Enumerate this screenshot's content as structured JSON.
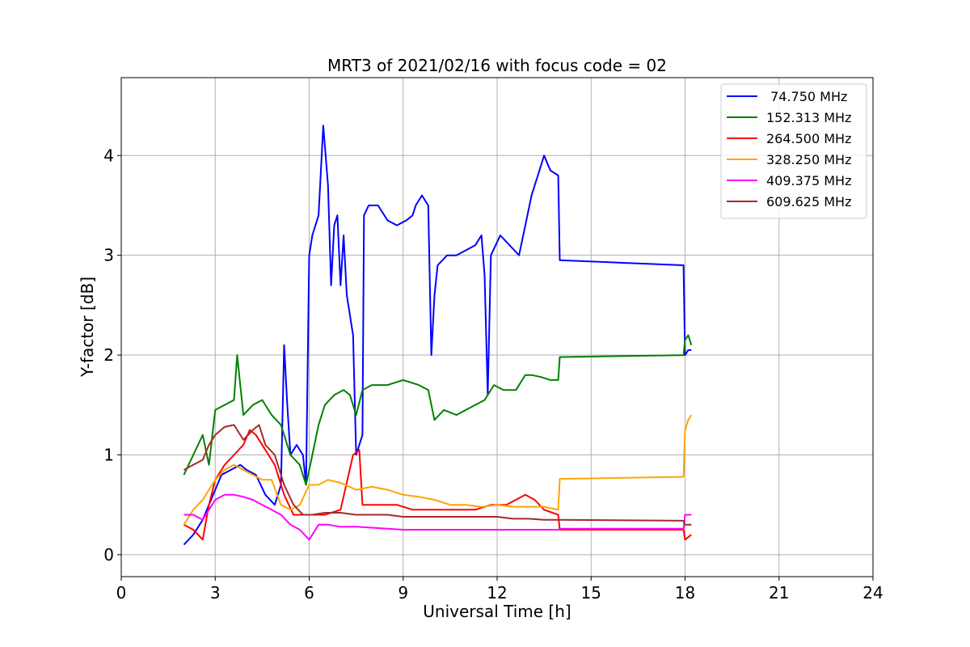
{
  "chart_data": {
    "type": "line",
    "title": "MRT3 of 2021/02/16 with focus code = 02",
    "xlabel": "Universal Time [h]",
    "ylabel": "Y-factor [dB]",
    "xlim": [
      0,
      24
    ],
    "ylim": [
      -0.22,
      4.78
    ],
    "xticks": [
      0,
      3,
      6,
      9,
      12,
      15,
      18,
      21,
      24
    ],
    "yticks": [
      0,
      1,
      2,
      3,
      4
    ],
    "grid": true,
    "legend_position": "top-right",
    "series": [
      {
        "name": " 74.750 MHz",
        "color": "#0000ff",
        "x": [
          2.0,
          2.3,
          2.6,
          2.8,
          3.0,
          3.2,
          3.5,
          3.8,
          4.0,
          4.3,
          4.6,
          4.9,
          5.1,
          5.2,
          5.3,
          5.4,
          5.6,
          5.8,
          5.9,
          6.0,
          6.1,
          6.3,
          6.45,
          6.6,
          6.7,
          6.8,
          6.9,
          7.0,
          7.1,
          7.2,
          7.3,
          7.4,
          7.5,
          7.6,
          7.7,
          7.75,
          7.9,
          8.2,
          8.5,
          8.8,
          9.1,
          9.3,
          9.4,
          9.6,
          9.8,
          9.9,
          10.0,
          10.1,
          10.4,
          10.7,
          11.0,
          11.3,
          11.5,
          11.6,
          11.7,
          11.8,
          12.1,
          12.4,
          12.7,
          12.9,
          13.1,
          13.3,
          13.5,
          13.7,
          13.95,
          14.0,
          17.95,
          18.0,
          18.1,
          18.2
        ],
        "y": [
          0.1,
          0.2,
          0.35,
          0.5,
          0.65,
          0.8,
          0.85,
          0.9,
          0.85,
          0.8,
          0.6,
          0.5,
          0.7,
          2.1,
          1.5,
          1.0,
          1.1,
          1.0,
          0.7,
          3.0,
          3.2,
          3.4,
          4.3,
          3.7,
          2.7,
          3.3,
          3.4,
          2.7,
          3.2,
          2.6,
          2.4,
          2.2,
          1.0,
          1.1,
          1.2,
          3.4,
          3.5,
          3.5,
          3.35,
          3.3,
          3.35,
          3.4,
          3.5,
          3.6,
          3.5,
          2.0,
          2.6,
          2.9,
          3.0,
          3.0,
          3.05,
          3.1,
          3.2,
          2.8,
          1.6,
          3.0,
          3.2,
          3.1,
          3.0,
          3.3,
          3.6,
          3.8,
          4.0,
          3.85,
          3.8,
          2.95,
          2.9,
          2.0,
          2.05,
          2.05
        ]
      },
      {
        "name": "152.313 MHz",
        "color": "#008000",
        "x": [
          2.0,
          2.3,
          2.6,
          2.8,
          3.0,
          3.3,
          3.6,
          3.7,
          3.9,
          4.2,
          4.5,
          4.8,
          5.1,
          5.4,
          5.7,
          5.9,
          6.1,
          6.3,
          6.5,
          6.8,
          7.1,
          7.3,
          7.5,
          7.7,
          8.0,
          8.5,
          9.0,
          9.5,
          9.8,
          10.0,
          10.3,
          10.7,
          11.0,
          11.3,
          11.6,
          11.9,
          12.2,
          12.6,
          12.9,
          13.1,
          13.4,
          13.7,
          13.95,
          14.0,
          17.95,
          18.0,
          18.1,
          18.2
        ],
        "y": [
          0.8,
          1.0,
          1.2,
          0.9,
          1.45,
          1.5,
          1.55,
          2.0,
          1.4,
          1.5,
          1.55,
          1.4,
          1.3,
          1.0,
          0.9,
          0.7,
          1.0,
          1.3,
          1.5,
          1.6,
          1.65,
          1.6,
          1.4,
          1.65,
          1.7,
          1.7,
          1.75,
          1.7,
          1.65,
          1.35,
          1.45,
          1.4,
          1.45,
          1.5,
          1.55,
          1.7,
          1.65,
          1.65,
          1.8,
          1.8,
          1.78,
          1.75,
          1.75,
          1.98,
          2.0,
          2.15,
          2.2,
          2.1
        ]
      },
      {
        "name": "264.500 MHz",
        "color": "#ff0000",
        "x": [
          2.0,
          2.3,
          2.6,
          2.8,
          3.0,
          3.3,
          3.6,
          3.9,
          4.1,
          4.3,
          4.6,
          4.9,
          5.2,
          5.5,
          5.8,
          6.1,
          6.5,
          7.0,
          7.4,
          7.6,
          7.7,
          7.9,
          8.3,
          8.8,
          9.3,
          9.8,
          10.3,
          10.8,
          11.3,
          11.8,
          12.3,
          12.6,
          12.9,
          13.2,
          13.5,
          13.95,
          14.0,
          17.95,
          18.0,
          18.2
        ],
        "y": [
          0.3,
          0.25,
          0.15,
          0.5,
          0.75,
          0.9,
          1.0,
          1.1,
          1.25,
          1.2,
          1.05,
          0.9,
          0.6,
          0.4,
          0.4,
          0.4,
          0.4,
          0.45,
          1.0,
          1.05,
          0.5,
          0.5,
          0.5,
          0.5,
          0.45,
          0.45,
          0.45,
          0.45,
          0.45,
          0.5,
          0.5,
          0.55,
          0.6,
          0.55,
          0.45,
          0.4,
          0.25,
          0.25,
          0.15,
          0.2
        ]
      },
      {
        "name": "328.250 MHz",
        "color": "#ffa500",
        "x": [
          2.0,
          2.3,
          2.6,
          2.8,
          3.0,
          3.3,
          3.6,
          3.9,
          4.2,
          4.5,
          4.8,
          5.1,
          5.4,
          5.7,
          6.0,
          6.3,
          6.6,
          7.0,
          7.5,
          8.0,
          8.5,
          9.0,
          9.5,
          10.0,
          10.5,
          11.0,
          11.5,
          12.0,
          12.5,
          13.0,
          13.5,
          13.95,
          14.0,
          17.95,
          18.0,
          18.1,
          18.2
        ],
        "y": [
          0.3,
          0.45,
          0.55,
          0.65,
          0.75,
          0.85,
          0.9,
          0.85,
          0.8,
          0.75,
          0.75,
          0.5,
          0.45,
          0.5,
          0.7,
          0.7,
          0.75,
          0.72,
          0.65,
          0.68,
          0.65,
          0.6,
          0.58,
          0.55,
          0.5,
          0.5,
          0.48,
          0.5,
          0.48,
          0.48,
          0.48,
          0.45,
          0.76,
          0.78,
          1.25,
          1.35,
          1.4
        ]
      },
      {
        "name": "409.375 MHz",
        "color": "#ff00ff",
        "x": [
          2.0,
          2.3,
          2.6,
          2.8,
          3.0,
          3.3,
          3.6,
          3.9,
          4.2,
          4.5,
          4.8,
          5.1,
          5.4,
          5.7,
          6.0,
          6.3,
          6.6,
          7.0,
          7.5,
          8.0,
          8.5,
          9.0,
          9.5,
          10.0,
          10.5,
          11.0,
          11.5,
          12.0,
          12.5,
          13.0,
          13.5,
          13.95,
          14.0,
          17.95,
          18.0,
          18.2
        ],
        "y": [
          0.4,
          0.4,
          0.35,
          0.45,
          0.55,
          0.6,
          0.6,
          0.58,
          0.55,
          0.5,
          0.45,
          0.4,
          0.3,
          0.25,
          0.15,
          0.3,
          0.3,
          0.28,
          0.28,
          0.27,
          0.26,
          0.25,
          0.25,
          0.25,
          0.25,
          0.25,
          0.25,
          0.25,
          0.25,
          0.25,
          0.25,
          0.25,
          0.26,
          0.26,
          0.4,
          0.4
        ]
      },
      {
        "name": "609.625 MHz",
        "color": "#a52a2a",
        "x": [
          2.0,
          2.3,
          2.6,
          2.8,
          3.0,
          3.3,
          3.6,
          3.9,
          4.2,
          4.4,
          4.6,
          4.9,
          5.2,
          5.5,
          5.8,
          6.1,
          6.5,
          7.0,
          7.5,
          8.0,
          8.5,
          9.0,
          9.5,
          10.0,
          10.5,
          11.0,
          11.5,
          12.0,
          12.5,
          13.0,
          13.5,
          13.95,
          14.0,
          17.95,
          18.0,
          18.2
        ],
        "y": [
          0.85,
          0.9,
          0.95,
          1.1,
          1.2,
          1.28,
          1.3,
          1.15,
          1.25,
          1.3,
          1.1,
          1.0,
          0.7,
          0.5,
          0.4,
          0.4,
          0.42,
          0.42,
          0.4,
          0.4,
          0.4,
          0.38,
          0.38,
          0.38,
          0.38,
          0.38,
          0.38,
          0.38,
          0.36,
          0.36,
          0.35,
          0.35,
          0.35,
          0.34,
          0.3,
          0.3
        ]
      }
    ]
  }
}
